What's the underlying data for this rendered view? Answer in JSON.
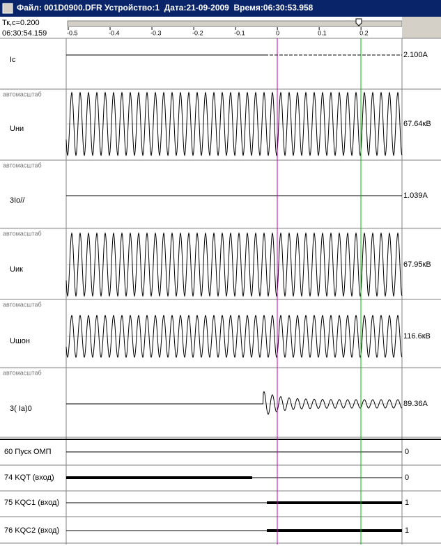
{
  "title_bar": {
    "text": "Файл: 001D0900.DFR Устройство:1  Дата:21-09-2009  Время:06:30:53.958"
  },
  "header": {
    "cursor_time": "Тк,с=0.200",
    "clock": "06:30:54.159"
  },
  "time_axis": {
    "xlim": [
      -0.505,
      0.298
    ],
    "ticks": [
      -0.5,
      -0.4,
      -0.3,
      -0.2,
      -0.1,
      0,
      0.1,
      0.2
    ]
  },
  "analog_channels": [
    {
      "name": "Ic",
      "value": "2.100A"
    },
    {
      "autoscale": "автомасштаб",
      "name": "Uни",
      "value": "67.64кВ"
    },
    {
      "autoscale": "автомасштаб",
      "name": "3Io//",
      "value": "1.039A"
    },
    {
      "autoscale": "автомасштаб",
      "name": "Uик",
      "value": "67.95кВ"
    },
    {
      "autoscale": "автомасштаб",
      "name": "Uшон",
      "value": "116.6кВ"
    },
    {
      "autoscale": "автомасштаб",
      "name": "3(   Ia)0",
      "value": "89.36A"
    }
  ],
  "digital_channels": [
    {
      "name": "60 Пуск ОМП",
      "value": "0"
    },
    {
      "name": "74 KQT (вход)",
      "value": "0"
    },
    {
      "name": "75 KQC1 (вход)",
      "value": "1"
    },
    {
      "name": "76 KQC2 (вход)",
      "value": "1"
    }
  ]
}
